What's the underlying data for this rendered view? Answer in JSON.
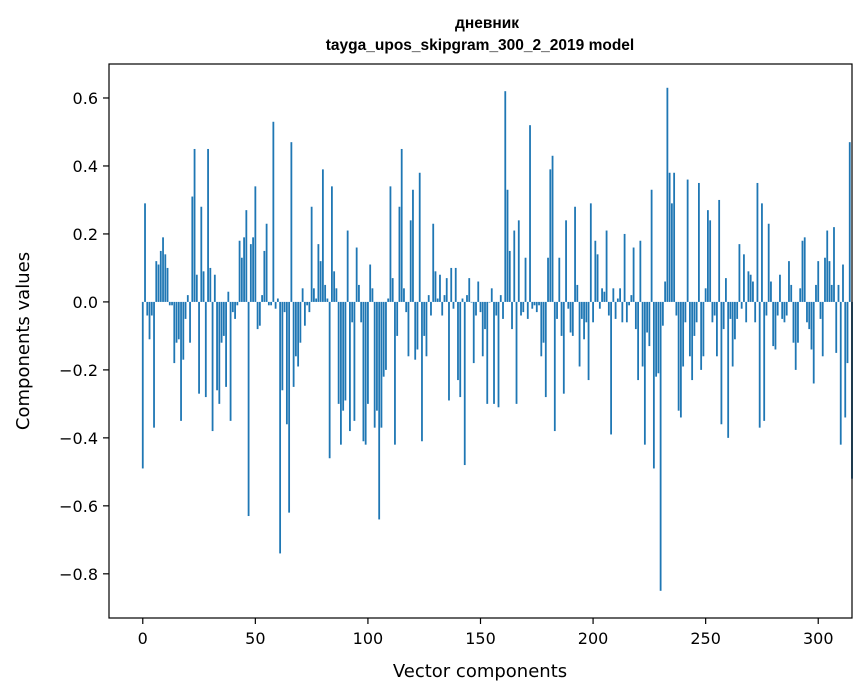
{
  "chart_data": {
    "type": "bar",
    "title_line1": "дневник",
    "title_line2": "tayga_upos_skipgram_300_2_2019 model",
    "xlabel": "Vector components",
    "ylabel": "Components values",
    "xlim": [
      -15,
      315
    ],
    "ylim": [
      -0.93,
      0.7
    ],
    "x_ticks": [
      0,
      50,
      100,
      150,
      200,
      250,
      300
    ],
    "y_ticks": [
      -0.8,
      -0.6,
      -0.4,
      -0.2,
      0.0,
      0.2,
      0.4,
      0.6
    ],
    "x_tick_labels": [
      "0",
      "50",
      "100",
      "150",
      "200",
      "250",
      "300"
    ],
    "y_tick_labels": [
      "−0.8",
      "−0.6",
      "−0.4",
      "−0.2",
      "0.0",
      "0.2",
      "0.4",
      "0.6"
    ],
    "color": "#1f77b4",
    "values": [
      -0.49,
      0.29,
      -0.04,
      -0.11,
      -0.04,
      -0.37,
      0.12,
      0.11,
      0.15,
      0.19,
      0.14,
      0.1,
      -0.01,
      -0.01,
      -0.18,
      -0.12,
      -0.11,
      -0.35,
      -0.17,
      -0.05,
      0.02,
      -0.12,
      0.31,
      0.45,
      0.08,
      -0.27,
      0.28,
      0.09,
      -0.28,
      0.45,
      0.1,
      -0.38,
      0.08,
      -0.26,
      -0.3,
      -0.12,
      -0.1,
      -0.25,
      0.03,
      -0.35,
      -0.03,
      -0.05,
      -0.01,
      0.18,
      0.13,
      0.19,
      0.27,
      -0.63,
      0.17,
      0.19,
      0.34,
      -0.08,
      -0.07,
      0.02,
      0.15,
      0.23,
      -0.01,
      -0.01,
      0.53,
      -0.02,
      0.01,
      -0.74,
      -0.26,
      -0.03,
      -0.36,
      -0.62,
      0.47,
      -0.25,
      -0.16,
      -0.19,
      -0.12,
      0.04,
      -0.07,
      -0.01,
      -0.03,
      0.28,
      0.04,
      0.01,
      0.17,
      0.12,
      0.39,
      0.05,
      0.01,
      -0.46,
      0.34,
      0.09,
      0.04,
      -0.3,
      -0.42,
      -0.32,
      -0.29,
      0.21,
      -0.38,
      -0.06,
      -0.35,
      0.16,
      0.05,
      -0.06,
      -0.41,
      -0.42,
      -0.3,
      0.11,
      0.04,
      -0.37,
      -0.32,
      -0.64,
      -0.37,
      -0.22,
      -0.2,
      0.01,
      0.34,
      0.07,
      -0.42,
      -0.1,
      0.28,
      0.45,
      0.04,
      -0.03,
      -0.16,
      0.24,
      0.33,
      -0.17,
      -0.14,
      0.38,
      -0.41,
      -0.1,
      -0.16,
      0.02,
      -0.04,
      0.23,
      0.09,
      0.01,
      0.08,
      -0.04,
      0.02,
      0.07,
      -0.29,
      0.1,
      -0.02,
      0.1,
      -0.23,
      -0.28,
      0.01,
      -0.48,
      0.02,
      0.07,
      0.0,
      -0.18,
      -0.04,
      0.06,
      -0.03,
      -0.16,
      -0.08,
      -0.3,
      0.0,
      0.04,
      -0.3,
      -0.04,
      -0.31,
      0.02,
      -0.05,
      0.62,
      0.33,
      0.15,
      -0.08,
      0.21,
      -0.3,
      0.24,
      -0.04,
      -0.03,
      0.13,
      -0.05,
      0.52,
      -0.02,
      -0.01,
      -0.03,
      -0.01,
      -0.16,
      -0.12,
      -0.28,
      0.13,
      0.39,
      0.43,
      -0.38,
      -0.05,
      0.13,
      -0.1,
      -0.27,
      0.24,
      -0.02,
      -0.09,
      -0.1,
      0.28,
      0.05,
      -0.19,
      -0.05,
      -0.11,
      -0.06,
      -0.23,
      0.29,
      -0.06,
      0.18,
      0.14,
      -0.02,
      0.04,
      0.03,
      0.21,
      -0.04,
      -0.39,
      0.04,
      -0.05,
      0.01,
      0.04,
      -0.06,
      0.2,
      -0.06,
      -0.01,
      0.02,
      0.16,
      -0.08,
      -0.23,
      0.18,
      -0.19,
      -0.42,
      -0.09,
      -0.13,
      0.33,
      -0.49,
      -0.22,
      -0.21,
      -0.85,
      -0.07,
      0.06,
      0.63,
      0.38,
      0.29,
      0.38,
      -0.04,
      -0.32,
      -0.34,
      -0.19,
      -0.06,
      0.36,
      -0.16,
      -0.23,
      -0.1,
      -0.06,
      0.35,
      -0.2,
      -0.16,
      0.04,
      0.27,
      0.24,
      -0.06,
      -0.04,
      -0.16,
      0.3,
      -0.36,
      -0.08,
      0.07,
      -0.4,
      -0.05,
      -0.19,
      -0.11,
      -0.05,
      0.17,
      -0.02,
      0.14,
      -0.06,
      0.09,
      0.08,
      0.06,
      -0.06,
      0.35,
      -0.37,
      0.29,
      -0.35,
      -0.04,
      0.23,
      0.06,
      -0.13,
      -0.14,
      -0.04,
      0.08,
      -0.05,
      -0.06,
      -0.04,
      0.12,
      0.05,
      -0.12,
      -0.2,
      -0.12,
      0.04,
      0.18,
      0.19,
      -0.06,
      -0.08,
      -0.14,
      -0.24,
      0.05,
      0.12,
      -0.05,
      -0.16,
      0.13,
      0.21,
      0.12,
      0.05,
      0.22,
      -0.15,
      0.05,
      -0.42,
      0.11,
      -0.34,
      -0.18,
      0.47,
      -0.52
    ]
  }
}
